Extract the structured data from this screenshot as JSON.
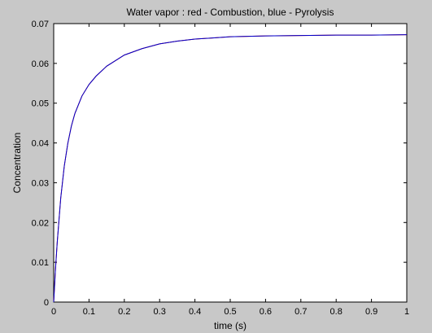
{
  "chart_data": {
    "type": "line",
    "title": "Water vapor : red - Combustion, blue - Pyrolysis",
    "xlabel": "time (s)",
    "ylabel": "Concentration",
    "xlim": [
      0,
      1
    ],
    "ylim": [
      0,
      0.07
    ],
    "xticks": [
      0,
      0.1,
      0.2,
      0.3,
      0.4,
      0.5,
      0.6,
      0.7,
      0.8,
      0.9,
      1
    ],
    "yticks": [
      0,
      0.01,
      0.02,
      0.03,
      0.04,
      0.05,
      0.06,
      0.07
    ],
    "xtick_labels": [
      "0",
      "0.1",
      "0.2",
      "0.3",
      "0.4",
      "0.5",
      "0.6",
      "0.7",
      "0.8",
      "0.9",
      "1"
    ],
    "ytick_labels": [
      "0",
      "0.01",
      "0.02",
      "0.03",
      "0.04",
      "0.05",
      "0.06",
      "0.07"
    ],
    "grid": false,
    "series": [
      {
        "color": "#cc0000",
        "x": [
          0,
          0.005,
          0.01,
          0.02,
          0.03,
          0.04,
          0.05,
          0.06,
          0.08,
          0.1,
          0.12,
          0.15,
          0.2,
          0.25,
          0.3,
          0.35,
          0.4,
          0.45,
          0.5,
          0.6,
          0.7,
          0.8,
          0.9,
          1.0
        ],
        "y": [
          0,
          0.0082,
          0.015,
          0.0262,
          0.0342,
          0.0399,
          0.0442,
          0.0474,
          0.0518,
          0.0547,
          0.0568,
          0.0593,
          0.0621,
          0.0637,
          0.0649,
          0.0656,
          0.0661,
          0.0664,
          0.0667,
          0.0669,
          0.067,
          0.0671,
          0.0671,
          0.0672
        ]
      },
      {
        "color": "#0000cc",
        "x": [
          0,
          0.005,
          0.01,
          0.02,
          0.03,
          0.04,
          0.05,
          0.06,
          0.08,
          0.1,
          0.12,
          0.15,
          0.2,
          0.25,
          0.3,
          0.35,
          0.4,
          0.45,
          0.5,
          0.6,
          0.7,
          0.8,
          0.9,
          1.0
        ],
        "y": [
          0,
          0.0082,
          0.015,
          0.0262,
          0.0342,
          0.0399,
          0.0442,
          0.0474,
          0.0518,
          0.0547,
          0.0568,
          0.0593,
          0.0621,
          0.0637,
          0.0649,
          0.0656,
          0.0661,
          0.0664,
          0.0667,
          0.0669,
          0.067,
          0.0671,
          0.0671,
          0.0672
        ]
      }
    ]
  }
}
